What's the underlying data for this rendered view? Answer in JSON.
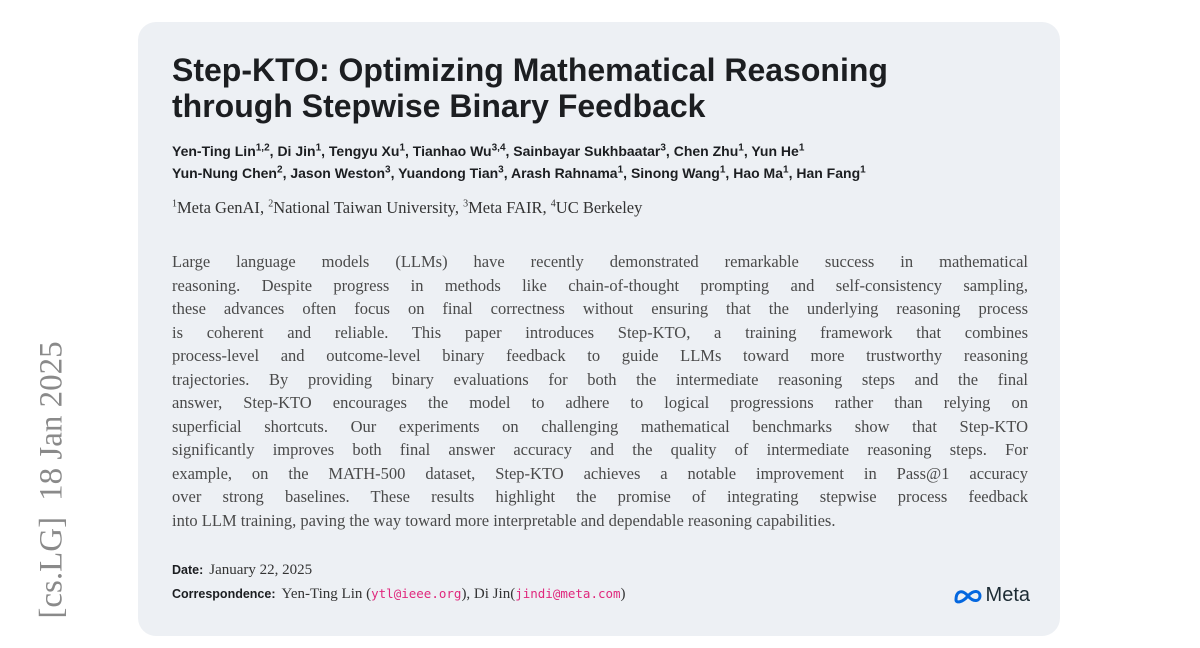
{
  "arxiv_stamp": {
    "category": "[cs.LG]",
    "date": "18 Jan 2025"
  },
  "header": {
    "title_lines": [
      "Step-KTO: Optimizing Mathematical Reasoning",
      "through Stepwise Binary Feedback"
    ]
  },
  "authors": {
    "separator": ", ",
    "lines": [
      [
        {
          "name": "Yen-Ting Lin",
          "sup": "1,2"
        },
        {
          "name": "Di Jin",
          "sup": "1"
        },
        {
          "name": "Tengyu Xu",
          "sup": "1"
        },
        {
          "name": "Tianhao Wu",
          "sup": "3,4"
        },
        {
          "name": "Sainbayar Sukhbaatar",
          "sup": "3"
        },
        {
          "name": "Chen Zhu",
          "sup": "1"
        },
        {
          "name": "Yun He",
          "sup": "1"
        }
      ],
      [
        {
          "name": "Yun-Nung Chen",
          "sup": "2"
        },
        {
          "name": "Jason Weston",
          "sup": "3"
        },
        {
          "name": "Yuandong Tian",
          "sup": "3"
        },
        {
          "name": "Arash Rahnama",
          "sup": "1"
        },
        {
          "name": "Sinong Wang",
          "sup": "1"
        },
        {
          "name": "Hao Ma",
          "sup": "1"
        },
        {
          "name": "Han Fang",
          "sup": "1"
        }
      ]
    ]
  },
  "affiliations": {
    "separator": ", ",
    "items": [
      {
        "sup": "1",
        "name": "Meta GenAI"
      },
      {
        "sup": "2",
        "name": "National Taiwan University"
      },
      {
        "sup": "3",
        "name": "Meta FAIR"
      },
      {
        "sup": "4",
        "name": "UC Berkeley"
      }
    ]
  },
  "abstract": {
    "lines": [
      "Large language models (LLMs) have recently demonstrated remarkable success in mathematical",
      "reasoning. Despite progress in methods like chain-of-thought prompting and self-consistency sampling,",
      "these advances often focus on final correctness without ensuring that the underlying reasoning process",
      "is coherent and reliable. This paper introduces Step-KTO, a training framework that combines",
      "process-level and outcome-level binary feedback to guide LLMs toward more trustworthy reasoning",
      "trajectories. By providing binary evaluations for both the intermediate reasoning steps and the final",
      "answer, Step-KTO encourages the model to adhere to logical progressions rather than relying on",
      "superficial shortcuts. Our experiments on challenging mathematical benchmarks show that Step-KTO",
      "significantly improves both final answer accuracy and the quality of intermediate reasoning steps. For",
      "example, on the MATH-500 dataset, Step-KTO achieves a notable improvement in Pass@1 accuracy",
      "over strong baselines. These results highlight the promise of integrating stepwise process feedback",
      "into LLM training, paving the way toward more interpretable and dependable reasoning capabilities."
    ]
  },
  "meta": {
    "date_label": "Date:",
    "date": "January 22, 2025",
    "correspondence_label": "Correspondence:",
    "text1": "Yen-Ting Lin (",
    "email1": "ytl@ieee.org",
    "text2": "), Di Jin(",
    "email2": "jindi@meta.com",
    "text3": ")"
  },
  "logo": {
    "text": "Meta"
  }
}
